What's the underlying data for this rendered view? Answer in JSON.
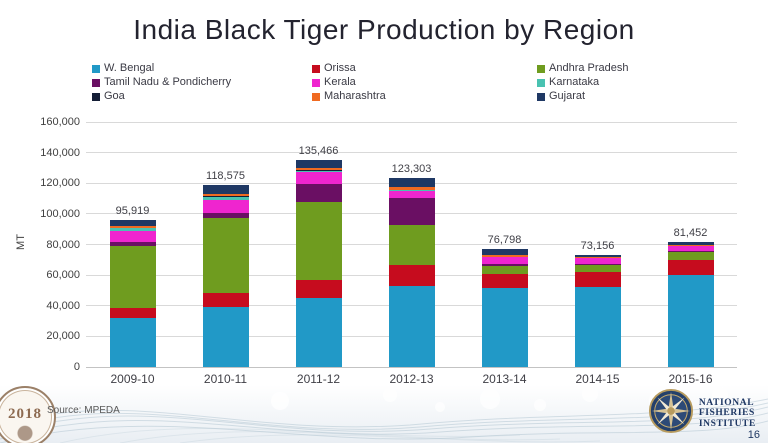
{
  "title": "India Black Tiger Production by Region",
  "source_note": "Source: MPEDA",
  "page_number": "16",
  "seal": {
    "year": "2018"
  },
  "org_logo": {
    "line1": "NATIONAL",
    "line2": "FISHERIES",
    "line3": "INSTITUTE"
  },
  "chart_data": {
    "type": "bar",
    "stacked": true,
    "title": "India Black Tiger Production by Region",
    "ylabel": "MT",
    "xlabel": "",
    "ylim": [
      0,
      160000
    ],
    "ytick_step": 20000,
    "ytick_labels": [
      "0",
      "20,000",
      "40,000",
      "60,000",
      "80,000",
      "100,000",
      "120,000",
      "140,000",
      "160,000"
    ],
    "grid": true,
    "legend_position": "top",
    "categories": [
      "2009-10",
      "2010-11",
      "2011-12",
      "2012-13",
      "2013-14",
      "2014-15",
      "2015-16"
    ],
    "totals": [
      95919,
      118575,
      135466,
      123303,
      76798,
      73156,
      81452
    ],
    "total_labels": [
      "95,919",
      "118,575",
      "135,466",
      "123,303",
      "76,798",
      "73,156",
      "81,452"
    ],
    "series": [
      {
        "name": "W. Bengal",
        "color": "#2199c7",
        "values": [
          32000,
          39500,
          44800,
          52800,
          51800,
          52300,
          60400
        ]
      },
      {
        "name": "Orissa",
        "color": "#c60c1e",
        "values": [
          6800,
          8800,
          12000,
          13700,
          9200,
          9800,
          9300
        ]
      },
      {
        "name": "Andhra Pradesh",
        "color": "#6f9c1f",
        "values": [
          40500,
          48700,
          51000,
          26100,
          4800,
          4800,
          5400
        ]
      },
      {
        "name": "Tamil Nadu & Pondicherry",
        "color": "#6a0f63",
        "values": [
          2300,
          3900,
          11400,
          17500,
          1500,
          700,
          600
        ]
      },
      {
        "name": "Kerala",
        "color": "#ef25cf",
        "values": [
          7500,
          8200,
          8200,
          4800,
          4400,
          3400,
          3300
        ]
      },
      {
        "name": "Karnataka",
        "color": "#49c2b1",
        "values": [
          1500,
          2000,
          800,
          500,
          300,
          200,
          200
        ]
      },
      {
        "name": "Goa",
        "color": "#141e36",
        "values": [
          300,
          300,
          300,
          200,
          100,
          100,
          100
        ]
      },
      {
        "name": "Maharashtra",
        "color": "#f06a21",
        "values": [
          1200,
          1500,
          1700,
          2000,
          800,
          400,
          400
        ]
      },
      {
        "name": "Gujarat",
        "color": "#1f3864",
        "values": [
          3819,
          5675,
          5266,
          5703,
          3898,
          1456,
          1752
        ]
      }
    ]
  }
}
